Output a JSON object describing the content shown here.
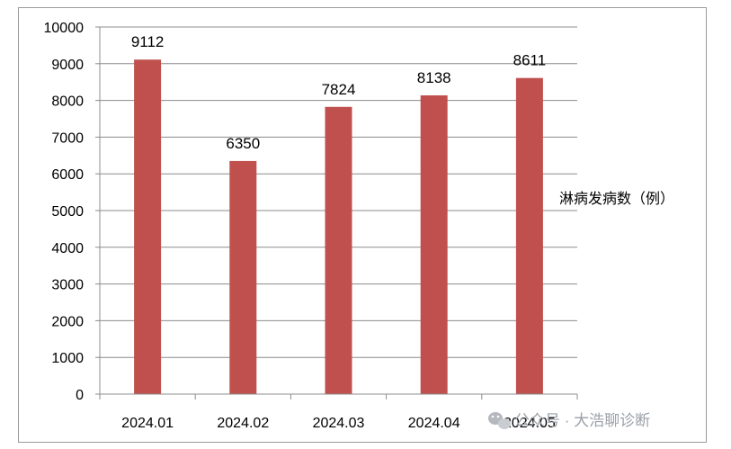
{
  "chart_data": {
    "type": "bar",
    "categories": [
      "2024.01",
      "2024.02",
      "2024.03",
      "2024.04",
      "2024.05"
    ],
    "series": [
      {
        "name": "淋病发病数（例）",
        "values": [
          9112,
          6350,
          7824,
          8138,
          8611
        ],
        "color": "#c0504d"
      }
    ],
    "data_labels": [
      "9112",
      "6350",
      "7824",
      "8138",
      "8611"
    ],
    "y_ticks": [
      "0",
      "1000",
      "2000",
      "3000",
      "4000",
      "5000",
      "6000",
      "7000",
      "8000",
      "9000",
      "10000"
    ],
    "ylim": [
      0,
      10000
    ],
    "grid": true,
    "legend_position": "right",
    "title": "",
    "xlabel": "",
    "ylabel": ""
  },
  "watermark": {
    "text": "公众号 · 大浩聊诊断",
    "icon": "wechat-icon"
  }
}
